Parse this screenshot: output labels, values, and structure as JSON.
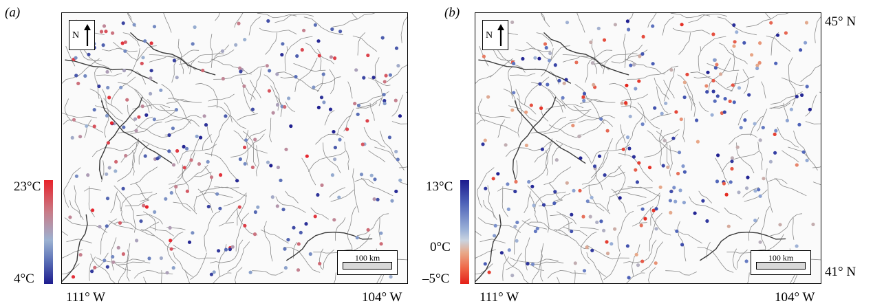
{
  "panels": [
    {
      "label": "(a)",
      "colorbar": {
        "top_label": "23°C",
        "bottom_label": "4°C",
        "colors": [
          "#e8222a",
          "#c97a86",
          "#9cb2d2",
          "#5a6fb6",
          "#1d1c8e"
        ]
      },
      "x_labels": [
        "111° W",
        "104° W"
      ]
    },
    {
      "label": "(b)",
      "colorbar": {
        "top_label": "13°C",
        "mid_label": "0°C",
        "bottom_label": "–5°C",
        "colors": [
          "#1d1c8e",
          "#4d62b8",
          "#9cb2d8",
          "#e8a888",
          "#e41f18"
        ]
      },
      "x_labels": [
        "111° W",
        "104° W"
      ],
      "y_labels": [
        "45° N",
        "41° N"
      ]
    }
  ],
  "north_arrow": {
    "letter": "N"
  },
  "scale_bar": {
    "label": "100 km"
  },
  "colors": {
    "river": "#8a8a8a",
    "boundary": "#3a3a3a"
  },
  "icons": [
    "north-arrow-icon",
    "scale-bar-icon"
  ]
}
